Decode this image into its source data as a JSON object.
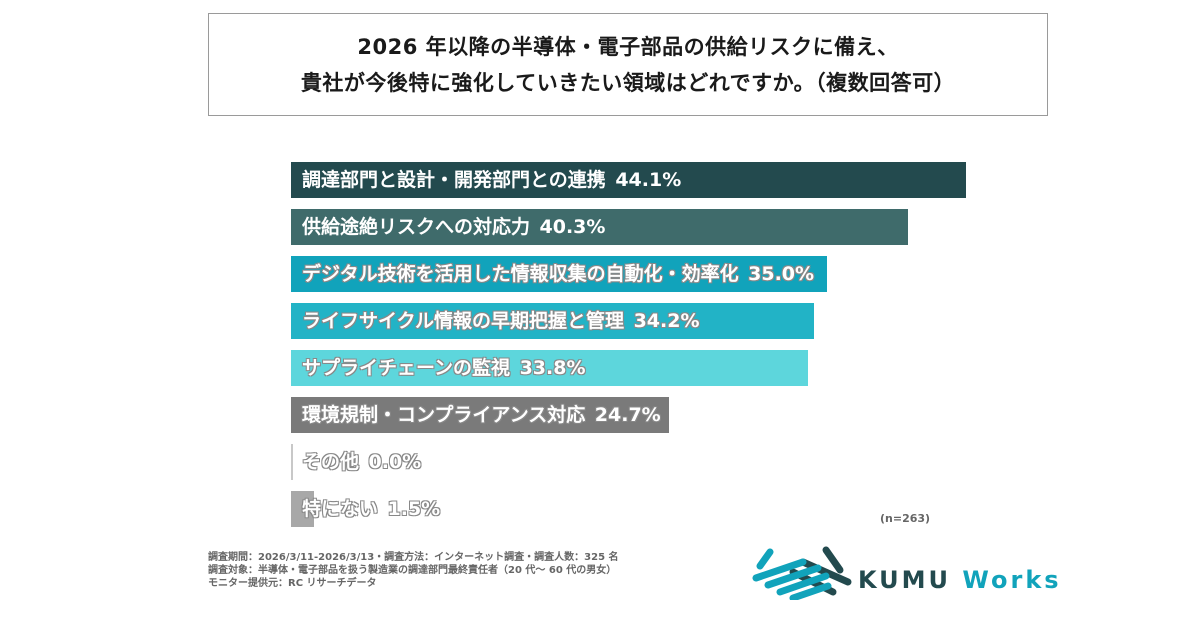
{
  "title_lines": [
    "2026 年以降の半導体・電子部品の供給リスクに備え、",
    "貴社が今後特に強化していきたい領域はどれですか。（複数回答可）"
  ],
  "chart_data": {
    "type": "bar",
    "orientation": "horizontal",
    "title": "2026 年以降の半導体・電子部品の供給リスクに備え、貴社が今後特に強化していきたい領域はどれですか。（複数回答可）",
    "categories": [
      "調達部門と設計・開発部門との連携",
      "供給途絶リスクへの対応力",
      "デジタル技術を活用した情報収集の自動化・効率化",
      "ライフサイクル情報の早期把握と管理",
      "サプライチェーンの監視",
      "環境規制・コンプライアンス対応",
      "その他",
      "特にない"
    ],
    "values": [
      44.1,
      40.3,
      35.0,
      34.2,
      33.8,
      24.7,
      0.0,
      1.5
    ],
    "value_labels": [
      "44.1%",
      "40.3%",
      "35.0%",
      "34.2%",
      "33.8%",
      "24.7%",
      "0.0%",
      "1.5%"
    ],
    "colors": [
      "#234a4e",
      "#3f6b6b",
      "#11a3bb",
      "#22b3c6",
      "#5dd6dc",
      "#7a7a7a",
      "#c8c8c8",
      "#a8a8a8"
    ],
    "unit": "%",
    "xlim": [
      0,
      44.1
    ],
    "grid": false,
    "sample_size": "(n=263)"
  },
  "notes": [
    "調査期間：2026/3/11-2026/3/13・調査方法：インターネット調査・調査人数：325 名",
    "調査対象：半導体・電子部品を扱う製造業の調達部門最終責任者（20 代～ 60 代の男女）",
    "モニター提供元：RC リサーチデータ"
  ],
  "logo": {
    "word1": "KUMU",
    "word2": "Works",
    "color1": "#234a4e",
    "color2": "#11a3bb"
  }
}
